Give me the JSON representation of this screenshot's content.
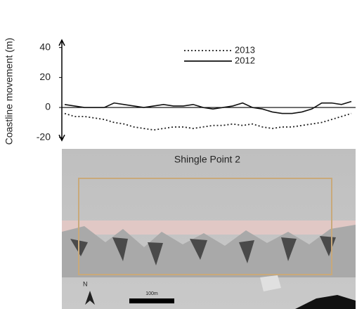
{
  "chart_data": {
    "type": "line",
    "ylabel": "Coastline movement (m)",
    "categories": [
      null,
      null,
      null,
      null,
      null,
      null,
      null,
      null,
      null,
      null,
      null,
      null,
      null,
      null,
      null,
      null,
      null,
      null,
      null,
      null,
      null,
      null,
      null,
      null,
      null,
      null,
      null,
      null,
      null,
      null
    ],
    "series": [
      {
        "name": "2013",
        "color": "#222222",
        "dash": "dotted",
        "values": [
          -4,
          -6,
          -6,
          -7,
          -8,
          -10,
          -11,
          -13,
          -14,
          -15,
          -14,
          -13,
          -13,
          -14,
          -13,
          -12,
          -12,
          -11,
          -12,
          -11,
          -13,
          -14,
          -13,
          -13,
          -12,
          -11,
          -10,
          -8,
          -6,
          -4
        ]
      },
      {
        "name": "2012",
        "color": "#111111",
        "dash": "solid",
        "values": [
          2,
          1,
          0,
          0,
          0,
          3,
          2,
          1,
          0,
          1,
          2,
          1,
          1,
          2,
          0,
          -1,
          0,
          1,
          3,
          0,
          -1,
          -3,
          -4,
          -4,
          -3,
          -1,
          3,
          3,
          2,
          4
        ]
      }
    ],
    "ylim": [
      -22,
      45
    ],
    "yticks": [
      -20,
      0,
      20,
      40
    ],
    "zero_line": true
  },
  "image": {
    "title": "Shingle Point 2",
    "scale_label": "100m",
    "north": "N"
  }
}
